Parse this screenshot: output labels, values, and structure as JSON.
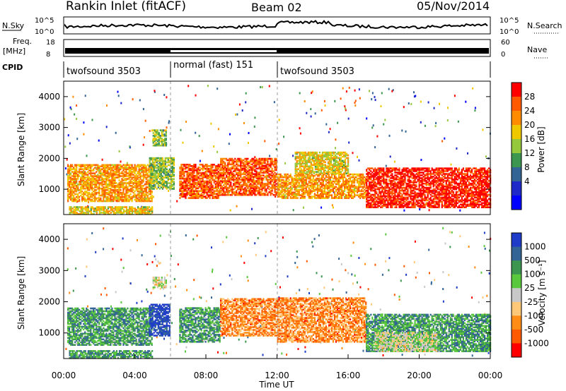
{
  "header": {
    "title": "Rankin Inlet (fitACF)",
    "beam": "Beam 02",
    "date": "05/Nov/2014"
  },
  "top_panels": {
    "nsky_label": "N.Sky",
    "nsky_ticks": [
      "10^5",
      "10^0"
    ],
    "nsearch_label": "N.Search",
    "nsearch_ticks": [
      "10^5",
      "10^0"
    ],
    "freq_label_1": "Freq.",
    "freq_label_2": "[MHz]",
    "freq_ticks": [
      "18",
      "8"
    ],
    "nave_label": "Nave",
    "nave_ticks": [
      "60",
      "0"
    ],
    "cpid_label": "CPID",
    "cpid_segments": [
      {
        "label": "twofsound 3503",
        "start_h": 0,
        "end_h": 6
      },
      {
        "label": "normal (fast) 151",
        "start_h": 6,
        "end_h": 12
      },
      {
        "label": "twofsound 3503",
        "start_h": 12,
        "end_h": 24
      }
    ]
  },
  "chart_data": [
    {
      "type": "heatmap",
      "name": "Power",
      "ylabel": "Slant Range [km]",
      "ylim": [
        180,
        4500
      ],
      "yticks": [
        "1000",
        "2000",
        "3000",
        "4000"
      ],
      "xlim_hours": [
        0,
        24
      ],
      "colorbar_label": "Power [dB]",
      "colorbar_ticks": [
        "28",
        "24",
        "20",
        "16",
        "12",
        "8",
        "4"
      ],
      "colorbar_colors": [
        "#ff0000",
        "#ff5a00",
        "#ff8c00",
        "#f0c800",
        "#96c83c",
        "#3c9650",
        "#326496",
        "#1e28c8",
        "#0000ff"
      ],
      "regions": [
        {
          "t0": 0.2,
          "t1": 5.0,
          "r0": 600,
          "r1": 1800,
          "c": 2
        },
        {
          "t0": 6.5,
          "t1": 8.8,
          "r0": 700,
          "r1": 1800,
          "c": 1
        },
        {
          "t0": 8.8,
          "t1": 12.0,
          "r0": 800,
          "r1": 2000,
          "c": 1
        },
        {
          "t0": 12.0,
          "t1": 17.0,
          "r0": 700,
          "r1": 1500,
          "c": 2
        },
        {
          "t0": 17.0,
          "t1": 24.0,
          "r0": 400,
          "r1": 1700,
          "c": 0
        },
        {
          "t0": 0.3,
          "t1": 5.0,
          "r0": 180,
          "r1": 450,
          "c": 3
        },
        {
          "t0": 5.0,
          "t1": 5.8,
          "r0": 2400,
          "r1": 2900,
          "c": 4
        },
        {
          "t0": 4.8,
          "t1": 6.2,
          "r0": 1000,
          "r1": 2000,
          "c": 4
        },
        {
          "t0": 13.0,
          "t1": 16.0,
          "r0": 1500,
          "r1": 2200,
          "c": 3
        }
      ]
    },
    {
      "type": "heatmap",
      "name": "Velocity",
      "ylabel": "Slant Range [km]",
      "ylim": [
        180,
        4500
      ],
      "yticks": [
        "1000",
        "2000",
        "3000",
        "4000"
      ],
      "xlabel": "Time UT",
      "xticks": [
        "00:00",
        "04:00",
        "08:00",
        "12:00",
        "16:00",
        "20:00",
        "00:00"
      ],
      "xlim_hours": [
        0,
        24
      ],
      "colorbar_label": "Velocity [m s⁻¹]",
      "colorbar_ticks": [
        "1000",
        "500",
        "100",
        "25",
        "-25",
        "-100",
        "-500",
        "-1000"
      ],
      "colorbar_colors": [
        "#1e3cc8",
        "#326496",
        "#3c9650",
        "#5ac83c",
        "#c8c8c8",
        "#ffc878",
        "#ff8c14",
        "#ff5a00",
        "#ff0000"
      ],
      "regions": [
        {
          "t0": 0.2,
          "t1": 5.0,
          "r0": 600,
          "r1": 1800,
          "c": 2
        },
        {
          "t0": 6.5,
          "t1": 8.8,
          "r0": 700,
          "r1": 1800,
          "c": 2
        },
        {
          "t0": 8.8,
          "t1": 12.0,
          "r0": 900,
          "r1": 2100,
          "c": 6
        },
        {
          "t0": 12.0,
          "t1": 17.0,
          "r0": 700,
          "r1": 2100,
          "c": 6
        },
        {
          "t0": 17.0,
          "t1": 24.0,
          "r0": 400,
          "r1": 1600,
          "c": 2
        },
        {
          "t0": 17.5,
          "t1": 21.0,
          "r0": 400,
          "r1": 1000,
          "c": 4
        },
        {
          "t0": 5.0,
          "t1": 5.8,
          "r0": 2400,
          "r1": 2800,
          "c": 4
        },
        {
          "t0": 4.8,
          "t1": 6.0,
          "r0": 900,
          "r1": 1900,
          "c": 0
        },
        {
          "t0": 0.3,
          "t1": 5.0,
          "r0": 180,
          "r1": 450,
          "c": 2
        }
      ]
    }
  ]
}
